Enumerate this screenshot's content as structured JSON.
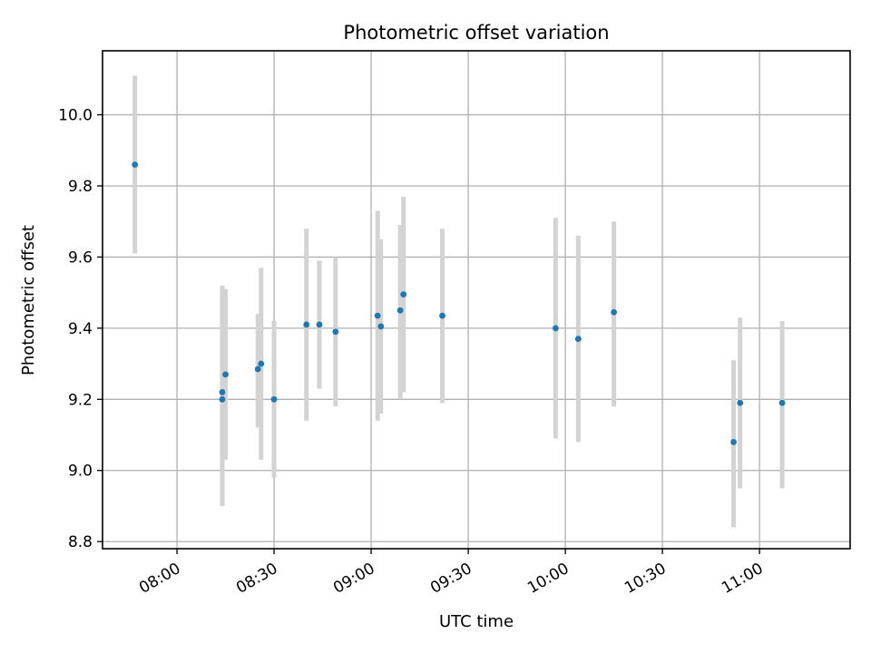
{
  "chart_data": {
    "type": "scatter",
    "title": "Photometric offset variation",
    "xlabel": "UTC time",
    "ylabel": "Photometric offset",
    "xlim": [
      "07:37",
      "11:28"
    ],
    "ylim": [
      8.78,
      10.18
    ],
    "xticks": [
      "08:00",
      "08:30",
      "09:00",
      "09:30",
      "10:00",
      "10:30",
      "11:00"
    ],
    "yticks": [
      "8.8",
      "9.0",
      "9.2",
      "9.4",
      "9.6",
      "9.8",
      "10.0"
    ],
    "grid": true,
    "colors": {
      "point": "#1f77b4",
      "error_bar": "#d3d3d3",
      "grid": "#b0b0b0"
    },
    "points": [
      {
        "x": "07:47",
        "y": 9.86,
        "err_low": 9.61,
        "err_high": 10.11
      },
      {
        "x": "08:14",
        "y": 9.22,
        "err_low": 8.92,
        "err_high": 9.52
      },
      {
        "x": "08:14",
        "y": 9.2,
        "err_low": 8.9,
        "err_high": 9.5
      },
      {
        "x": "08:15",
        "y": 9.27,
        "err_low": 9.03,
        "err_high": 9.51
      },
      {
        "x": "08:25",
        "y": 9.285,
        "err_low": 9.12,
        "err_high": 9.44
      },
      {
        "x": "08:26",
        "y": 9.3,
        "err_low": 9.03,
        "err_high": 9.57
      },
      {
        "x": "08:30",
        "y": 9.2,
        "err_low": 8.98,
        "err_high": 9.42
      },
      {
        "x": "08:40",
        "y": 9.41,
        "err_low": 9.14,
        "err_high": 9.68
      },
      {
        "x": "08:44",
        "y": 9.41,
        "err_low": 9.23,
        "err_high": 9.59
      },
      {
        "x": "08:49",
        "y": 9.39,
        "err_low": 9.18,
        "err_high": 9.6
      },
      {
        "x": "09:02",
        "y": 9.435,
        "err_low": 9.14,
        "err_high": 9.73
      },
      {
        "x": "09:03",
        "y": 9.405,
        "err_low": 9.16,
        "err_high": 9.65
      },
      {
        "x": "09:09",
        "y": 9.45,
        "err_low": 9.2,
        "err_high": 9.69
      },
      {
        "x": "09:10",
        "y": 9.495,
        "err_low": 9.22,
        "err_high": 9.77
      },
      {
        "x": "09:22",
        "y": 9.435,
        "err_low": 9.19,
        "err_high": 9.68
      },
      {
        "x": "09:57",
        "y": 9.4,
        "err_low": 9.09,
        "err_high": 9.71
      },
      {
        "x": "10:04",
        "y": 9.37,
        "err_low": 9.08,
        "err_high": 9.66
      },
      {
        "x": "10:15",
        "y": 9.445,
        "err_low": 9.18,
        "err_high": 9.7
      },
      {
        "x": "10:52",
        "y": 9.08,
        "err_low": 8.84,
        "err_high": 9.31
      },
      {
        "x": "10:54",
        "y": 9.19,
        "err_low": 8.95,
        "err_high": 9.43
      },
      {
        "x": "11:07",
        "y": 9.19,
        "err_low": 8.95,
        "err_high": 9.42
      }
    ]
  }
}
